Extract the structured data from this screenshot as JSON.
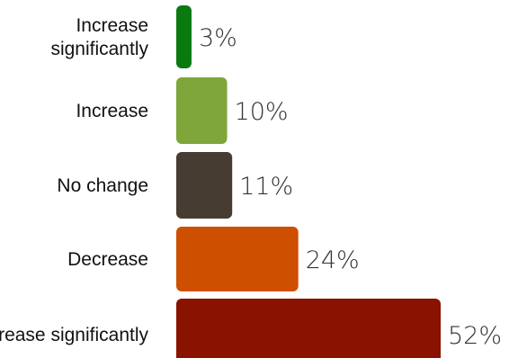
{
  "chart_data": {
    "type": "bar",
    "orientation": "horizontal",
    "categories": [
      [
        "Increase",
        "significantly"
      ],
      [
        "Increase"
      ],
      [
        "No change"
      ],
      [
        "Decrease"
      ],
      [
        "Decrease significantly"
      ]
    ],
    "values": [
      3,
      10,
      11,
      24,
      52
    ],
    "value_labels": [
      "3%",
      "10%",
      "11%",
      "24%",
      "52%"
    ],
    "colors": [
      "#0a7a10",
      "#7ea63a",
      "#463c32",
      "#cf4f00",
      "#8a1200"
    ],
    "title": "",
    "xlabel": "",
    "ylabel": "",
    "xlim": [
      0,
      52
    ],
    "grid": false,
    "legend": "none"
  }
}
